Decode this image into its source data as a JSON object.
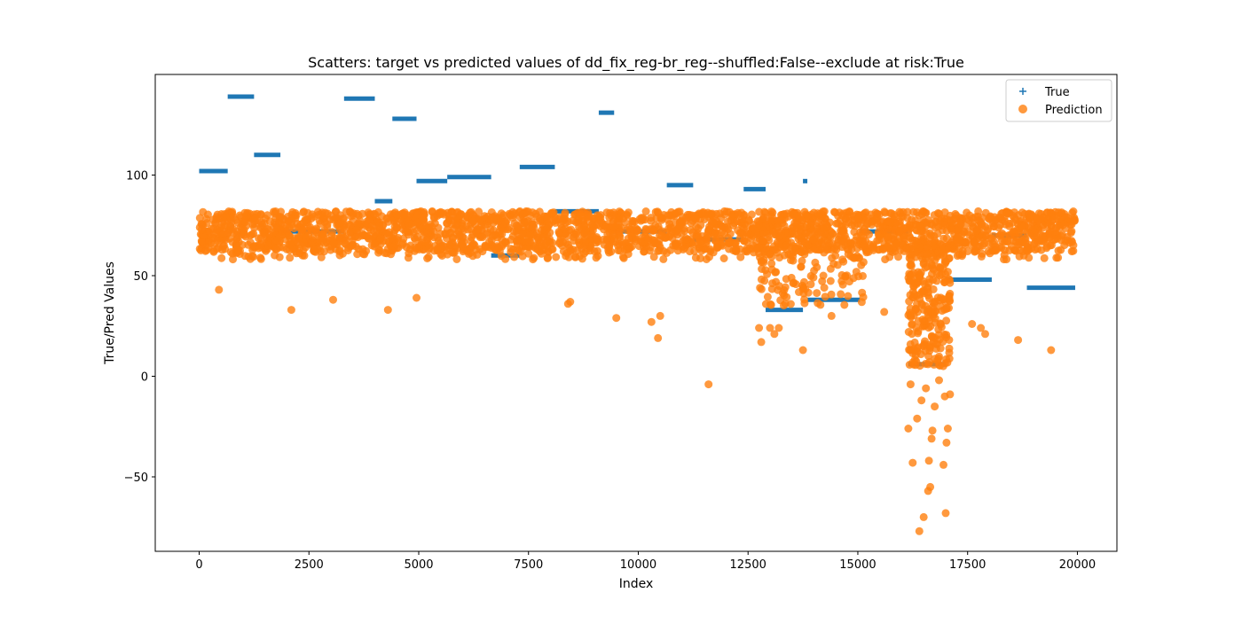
{
  "chart_data": {
    "type": "scatter",
    "title": "Scatters: target vs predicted values of dd_fix_reg-br_reg--shuffled:False--exclude at risk:True",
    "xlabel": "Index",
    "ylabel": "True/Pred Values",
    "xlim": [
      -1000,
      20900
    ],
    "ylim": [
      -87,
      150
    ],
    "x_ticks": [
      0,
      2500,
      5000,
      7500,
      10000,
      12500,
      15000,
      17500,
      20000
    ],
    "x_tick_labels": [
      "0",
      "2500",
      "5000",
      "7500",
      "10000",
      "12500",
      "15000",
      "17500",
      "20000"
    ],
    "y_ticks": [
      -50,
      0,
      50,
      100
    ],
    "y_tick_labels": [
      "−50",
      "0",
      "50",
      "100"
    ],
    "grid": false,
    "legend_position": "top-right",
    "colors": {
      "true": "#1f77b4",
      "prediction": "#ff7f0e"
    },
    "series": [
      {
        "name": "True",
        "marker": "+",
        "segments": [
          {
            "x_start": 0,
            "x_end": 650,
            "y": 102
          },
          {
            "x_start": 650,
            "x_end": 1250,
            "y": 139
          },
          {
            "x_start": 1250,
            "x_end": 1850,
            "y": 110
          },
          {
            "x_start": 1850,
            "x_end": 3300,
            "y": 72
          },
          {
            "x_start": 3300,
            "x_end": 4000,
            "y": 138
          },
          {
            "x_start": 4000,
            "x_end": 4400,
            "y": 87
          },
          {
            "x_start": 4400,
            "x_end": 4950,
            "y": 128
          },
          {
            "x_start": 4950,
            "x_end": 5650,
            "y": 97
          },
          {
            "x_start": 5650,
            "x_end": 6650,
            "y": 99
          },
          {
            "x_start": 6650,
            "x_end": 7300,
            "y": 60
          },
          {
            "x_start": 7300,
            "x_end": 8100,
            "y": 104
          },
          {
            "x_start": 8100,
            "x_end": 9100,
            "y": 82
          },
          {
            "x_start": 9100,
            "x_end": 9450,
            "y": 131
          },
          {
            "x_start": 9450,
            "x_end": 10650,
            "y": 72
          },
          {
            "x_start": 10650,
            "x_end": 11250,
            "y": 95
          },
          {
            "x_start": 11250,
            "x_end": 12400,
            "y": 68
          },
          {
            "x_start": 12400,
            "x_end": 12900,
            "y": 93
          },
          {
            "x_start": 12900,
            "x_end": 13750,
            "y": 33
          },
          {
            "x_start": 13750,
            "x_end": 13850,
            "y": 97
          },
          {
            "x_start": 13850,
            "x_end": 15050,
            "y": 38
          },
          {
            "x_start": 15050,
            "x_end": 16150,
            "y": 72
          },
          {
            "x_start": 16150,
            "x_end": 17000,
            "y": 6
          },
          {
            "x_start": 17000,
            "x_end": 18050,
            "y": 48
          },
          {
            "x_start": 18050,
            "x_end": 18850,
            "y": 70
          },
          {
            "x_start": 18850,
            "x_end": 19950,
            "y": 44
          }
        ]
      },
      {
        "name": "Prediction",
        "marker": "o",
        "band": {
          "x_range": [
            0,
            19950
          ],
          "y_center": 72,
          "y_upper": 82,
          "y_lower": 58
        },
        "outliers": [
          {
            "x": 450,
            "y": 43
          },
          {
            "x": 2100,
            "y": 33
          },
          {
            "x": 3050,
            "y": 38
          },
          {
            "x": 4300,
            "y": 33
          },
          {
            "x": 4950,
            "y": 39
          },
          {
            "x": 8400,
            "y": 36
          },
          {
            "x": 8450,
            "y": 37
          },
          {
            "x": 9500,
            "y": 29
          },
          {
            "x": 10300,
            "y": 27
          },
          {
            "x": 10450,
            "y": 19
          },
          {
            "x": 10500,
            "y": 30
          },
          {
            "x": 11600,
            "y": -4
          },
          {
            "x": 12750,
            "y": 24
          },
          {
            "x": 12800,
            "y": 17
          },
          {
            "x": 13000,
            "y": 24
          },
          {
            "x": 13100,
            "y": 21
          },
          {
            "x": 13200,
            "y": 24
          },
          {
            "x": 13750,
            "y": 13
          },
          {
            "x": 14400,
            "y": 30
          },
          {
            "x": 15600,
            "y": 32
          },
          {
            "x": 16150,
            "y": -26
          },
          {
            "x": 16200,
            "y": -4
          },
          {
            "x": 16250,
            "y": -43
          },
          {
            "x": 16350,
            "y": -21
          },
          {
            "x": 16400,
            "y": -77
          },
          {
            "x": 16450,
            "y": -12
          },
          {
            "x": 16500,
            "y": -70
          },
          {
            "x": 16550,
            "y": -6
          },
          {
            "x": 16600,
            "y": -57
          },
          {
            "x": 16620,
            "y": -42
          },
          {
            "x": 16650,
            "y": -55
          },
          {
            "x": 16680,
            "y": -31
          },
          {
            "x": 16700,
            "y": -27
          },
          {
            "x": 16750,
            "y": -15
          },
          {
            "x": 16850,
            "y": -2
          },
          {
            "x": 16950,
            "y": -44
          },
          {
            "x": 16980,
            "y": -10
          },
          {
            "x": 17000,
            "y": -68
          },
          {
            "x": 17020,
            "y": -33
          },
          {
            "x": 17050,
            "y": -26
          },
          {
            "x": 17100,
            "y": -9
          },
          {
            "x": 17600,
            "y": 26
          },
          {
            "x": 17800,
            "y": 24
          },
          {
            "x": 17900,
            "y": 21
          },
          {
            "x": 18650,
            "y": 18
          },
          {
            "x": 19400,
            "y": 13
          }
        ]
      }
    ]
  }
}
